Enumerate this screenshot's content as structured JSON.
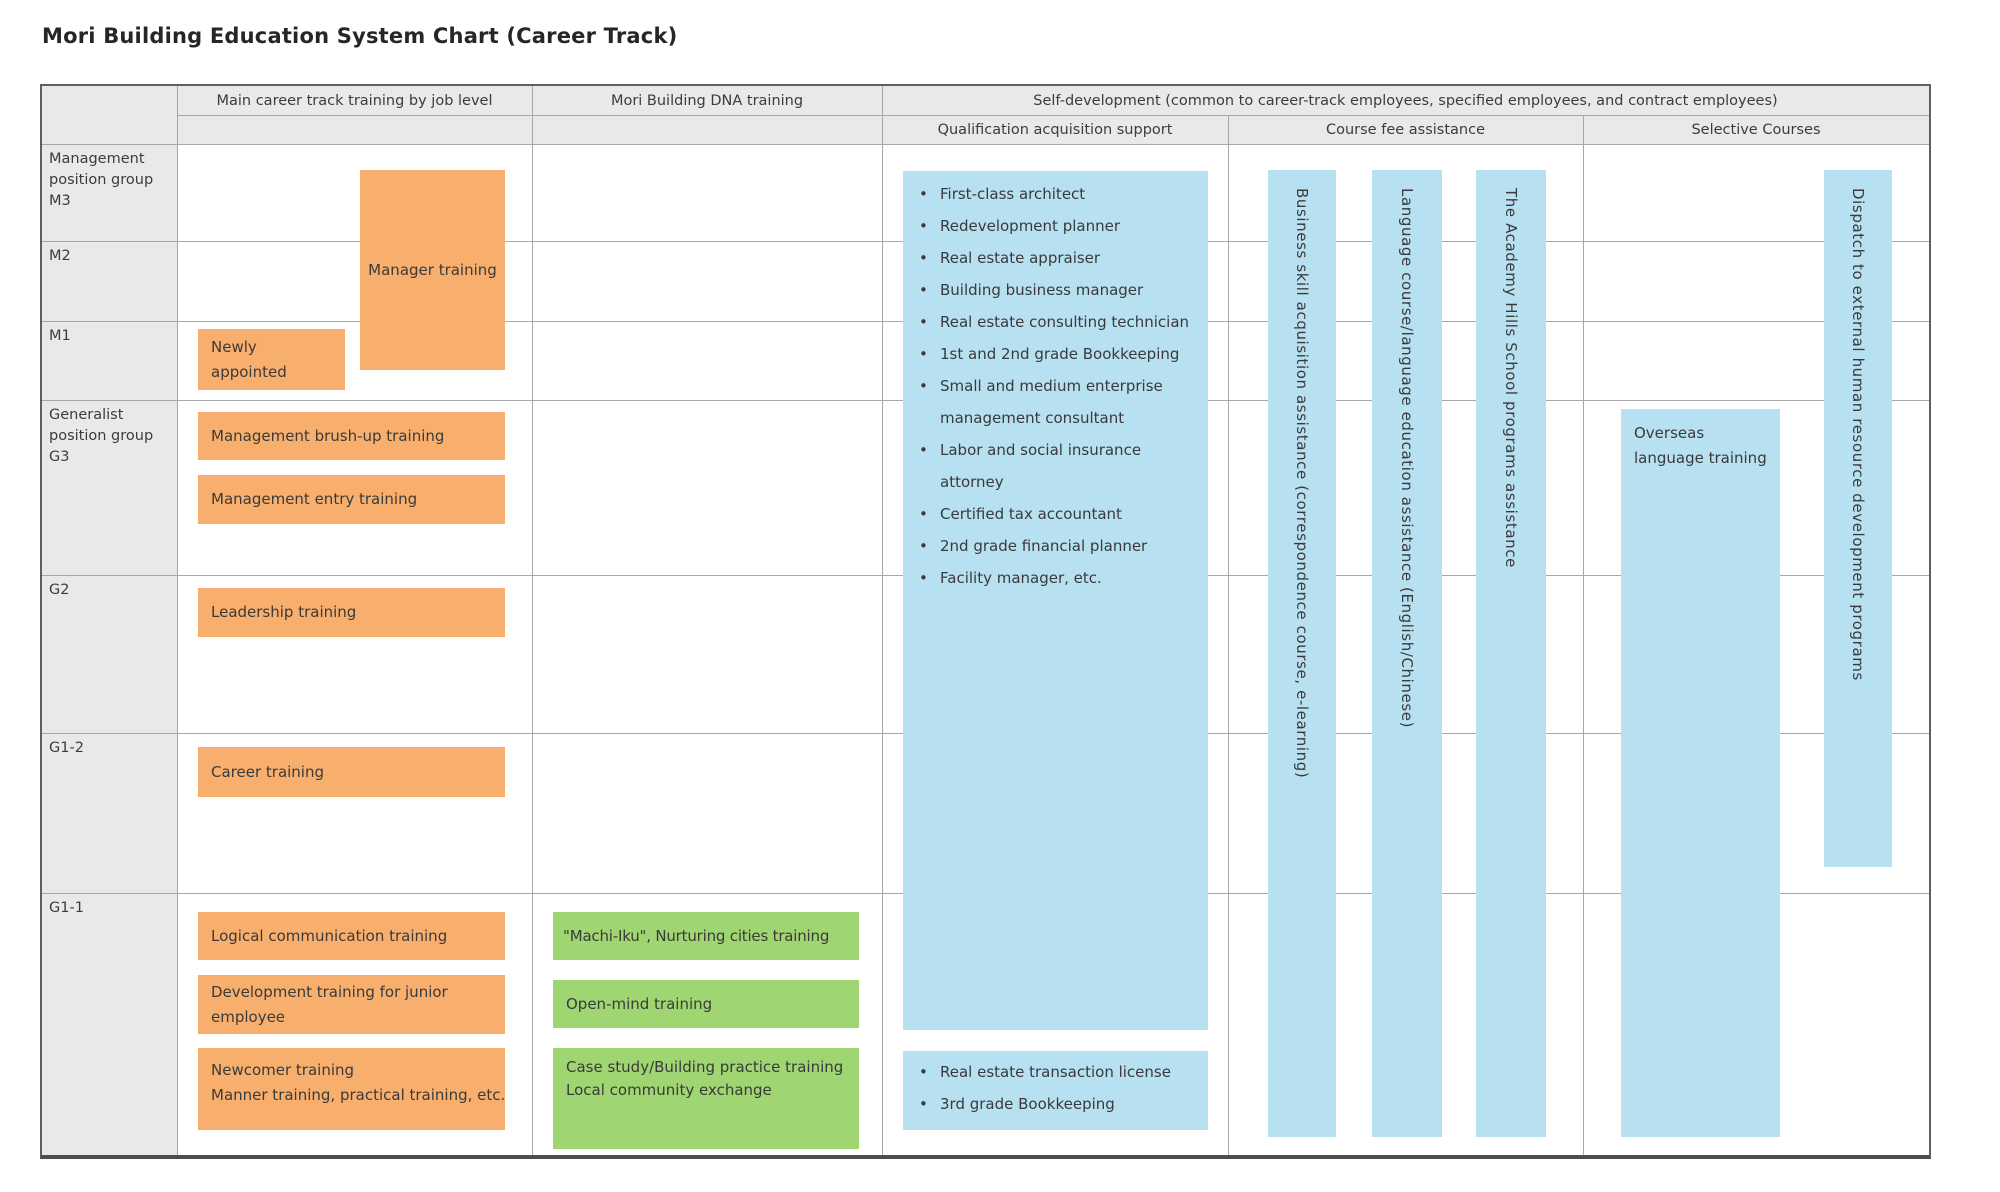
{
  "title": "Mori Building Education System Chart (Career Track)",
  "colors": {
    "career": "#F8AF6D",
    "dna": "#A0D671",
    "selfdev": "#B7E0F1",
    "header-bg": "#E9E9EB",
    "grid": "#A8A8A8",
    "text": "#3C3C3C"
  },
  "header": {
    "col_main": "Main career track training by job level",
    "col_dna": "Mori Building DNA training",
    "col_self_dev": "Self-development (common to career-track employees, specified employees, and contract employees)",
    "sub_qualification": "Qualification acquisition support",
    "sub_course_fee": "Course fee assistance",
    "sub_selective": "Selective Courses"
  },
  "row_labels": [
    "Management position group\nM3",
    "M2",
    "M1",
    "Generalist position group\nG3",
    "G2",
    "G1-2",
    "G1-1"
  ],
  "career_track": {
    "manager": "Manager training",
    "newly_appointed": "Newly appointed",
    "brush_up": "Management brush-up training",
    "entry": "Management entry training",
    "leadership": "Leadership training",
    "career": "Career training",
    "logical": "Logical communication training",
    "junior": "Development training for junior employee",
    "newcomer": "Newcomer training\nManner training, practical training, etc."
  },
  "dna": {
    "machi_iku": "\"Machi-Iku\", Nurturing cities training",
    "open_mind": "Open-mind training",
    "case_study": "Case study/Building practice training\nLocal community exchange"
  },
  "qualification": {
    "main_list": [
      "First-class architect",
      "Redevelopment planner",
      "Real estate appraiser",
      "Building business manager",
      "Real estate consulting technician",
      "1st and 2nd grade Bookkeeping",
      "Small and medium enterprise management consultant",
      "Labor and social insurance attorney",
      "Certified tax accountant",
      "2nd grade financial planner",
      "Facility manager, etc."
    ],
    "basic_list": [
      "Real estate transaction license",
      "3rd grade Bookkeeping"
    ]
  },
  "course_fee": {
    "bars": [
      "Business skill acquisition assistance (correspondence course, e-learning)",
      "Language course/language education assistance (English/Chinese)",
      "The Academy Hills School programs assistance"
    ]
  },
  "selective": {
    "overseas": "Overseas language training",
    "dispatch": "Dispatch to external human resource development programs"
  }
}
